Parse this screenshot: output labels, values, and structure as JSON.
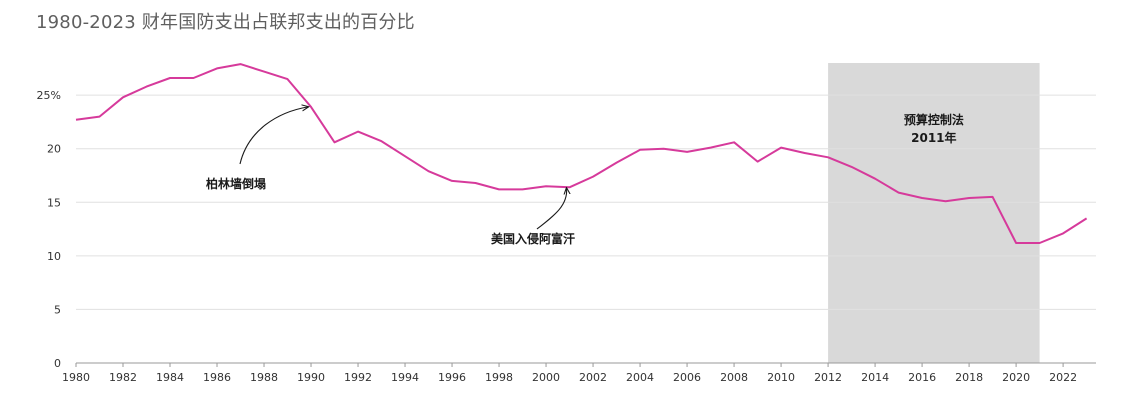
{
  "title": "1980-2023 财年国防支出占联邦支出的百分比",
  "chart_data": {
    "type": "line",
    "title": "1980-2023 财年国防支出占联邦支出的百分比",
    "xlabel": "",
    "ylabel": "",
    "x": [
      1980,
      1981,
      1982,
      1983,
      1984,
      1985,
      1986,
      1987,
      1988,
      1989,
      1990,
      1991,
      1992,
      1993,
      1994,
      1995,
      1996,
      1997,
      1998,
      1999,
      2000,
      2001,
      2002,
      2003,
      2004,
      2005,
      2006,
      2007,
      2008,
      2009,
      2010,
      2011,
      2012,
      2013,
      2014,
      2015,
      2016,
      2017,
      2018,
      2019,
      2020,
      2021,
      2022,
      2023
    ],
    "series": [
      {
        "values": [
          22.7,
          23.0,
          24.8,
          25.8,
          26.6,
          26.6,
          27.5,
          27.9,
          27.2,
          26.5,
          23.9,
          20.6,
          21.6,
          20.7,
          19.3,
          17.9,
          17.0,
          16.8,
          16.2,
          16.2,
          16.5,
          16.4,
          17.4,
          18.7,
          19.9,
          20.0,
          19.7,
          20.1,
          20.6,
          18.8,
          20.1,
          19.6,
          19.2,
          18.3,
          17.2,
          15.9,
          15.4,
          15.1,
          15.4,
          15.5,
          11.2,
          11.2,
          12.1,
          13.5
        ],
        "color": "#d63a9b"
      }
    ],
    "xlim": [
      1980,
      2023.4
    ],
    "ylim": [
      0,
      25
    ],
    "y_ticks": [
      0,
      5,
      10,
      15,
      20,
      25
    ],
    "y_tick_labels": [
      "0",
      "5",
      "10",
      "15",
      "20",
      "25%"
    ],
    "y_max_plot": 28.5,
    "x_ticks": [
      1980,
      1982,
      1984,
      1986,
      1988,
      1990,
      1992,
      1994,
      1996,
      1998,
      2000,
      2002,
      2004,
      2006,
      2008,
      2010,
      2012,
      2014,
      2016,
      2018,
      2020,
      2022
    ],
    "x_tick_labels": [
      "1980",
      "1982",
      "1984",
      "1986",
      "1988",
      "1990",
      "1992",
      "1994",
      "1996",
      "1998",
      "2000",
      "2002",
      "2004",
      "2006",
      "2008",
      "2010",
      "2012",
      "2014",
      "2016",
      "2018",
      "2020",
      "2022"
    ],
    "grid": true,
    "legend": "none",
    "shaded_region": {
      "x_start": 2012,
      "x_end": 2021,
      "label_lines": [
        "预算控制法",
        "2011年"
      ],
      "color": "#d9d9d9"
    },
    "annotations": [
      {
        "text": "柏林墙倒塌",
        "point_x": 1990,
        "point_y": 24.0
      },
      {
        "text": "美国入侵阿富汗",
        "point_x": 2001,
        "point_y": 16.4
      }
    ],
    "colors": {
      "line": "#d63a9b",
      "grid": "#e0e0e0",
      "axis": "#999999",
      "shade": "#d9d9d9"
    }
  }
}
